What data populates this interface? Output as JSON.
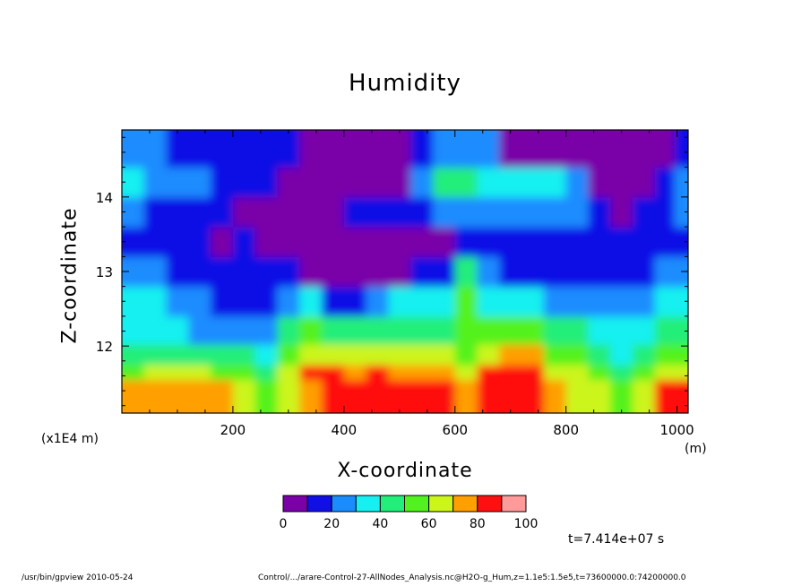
{
  "chart_data": {
    "type": "heatmap",
    "title": "Humidity",
    "xlabel": "X-coordinate",
    "xunit": "(m)",
    "ylabel": "Z-coordinate",
    "yscale_label": "(x1E4 m)",
    "xlim": [
      0,
      1020
    ],
    "ylim": [
      11.1,
      14.9
    ],
    "xticks": [
      200,
      400,
      600,
      800,
      1000
    ],
    "yticks": [
      12,
      13,
      14
    ],
    "colorbar": {
      "levels": [
        0,
        10,
        20,
        30,
        40,
        50,
        60,
        70,
        80,
        90,
        100
      ],
      "tick_labels": [
        "0",
        "20",
        "40",
        "60",
        "80",
        "100"
      ],
      "colors": [
        "#7a00a8",
        "#1010e6",
        "#1a8cff",
        "#17f0f0",
        "#22ee7a",
        "#52f21e",
        "#ccf51a",
        "#ff9f00",
        "#ff1010",
        "#ff9a9a"
      ]
    },
    "levels_grid": {
      "x_centers": [
        20,
        60,
        100,
        140,
        180,
        220,
        260,
        300,
        340,
        380,
        420,
        460,
        500,
        540,
        580,
        620,
        660,
        700,
        740,
        780,
        820,
        860,
        900,
        940,
        980,
        1010
      ],
      "z_rows": [
        11.45,
        11.65,
        11.85,
        12.2,
        12.6,
        13.0,
        13.4,
        13.8,
        14.2,
        14.6
      ],
      "values": [
        [
          7,
          7,
          7,
          7,
          7,
          6,
          5,
          6,
          7,
          8,
          8,
          8,
          8,
          8,
          8,
          7,
          8,
          8,
          8,
          7,
          6,
          6,
          5,
          6,
          8,
          8
        ],
        [
          5,
          6,
          6,
          6,
          5,
          5,
          4,
          6,
          8,
          8,
          7,
          8,
          7,
          7,
          7,
          6,
          8,
          8,
          8,
          6,
          6,
          5,
          4,
          5,
          6,
          6
        ],
        [
          4,
          4,
          4,
          4,
          4,
          4,
          3,
          5,
          6,
          6,
          6,
          6,
          6,
          6,
          6,
          5,
          6,
          7,
          7,
          5,
          5,
          4,
          3,
          4,
          5,
          5
        ],
        [
          3,
          3,
          3,
          2,
          2,
          2,
          2,
          4,
          5,
          4,
          4,
          4,
          4,
          4,
          4,
          5,
          5,
          5,
          5,
          4,
          4,
          3,
          3,
          3,
          4,
          4
        ],
        [
          3,
          3,
          2,
          2,
          1,
          1,
          1,
          2,
          3,
          1,
          1,
          2,
          3,
          3,
          3,
          5,
          3,
          3,
          3,
          2,
          2,
          2,
          2,
          2,
          3,
          3
        ],
        [
          2,
          2,
          1,
          1,
          1,
          1,
          1,
          1,
          0,
          0,
          0,
          0,
          0,
          1,
          1,
          4,
          2,
          1,
          1,
          1,
          1,
          1,
          1,
          1,
          2,
          2
        ],
        [
          1,
          1,
          1,
          1,
          0,
          1,
          0,
          0,
          0,
          0,
          0,
          0,
          0,
          0,
          0,
          1,
          1,
          1,
          1,
          1,
          1,
          1,
          1,
          1,
          1,
          1
        ],
        [
          2,
          1,
          1,
          1,
          1,
          0,
          0,
          0,
          0,
          0,
          1,
          1,
          1,
          1,
          2,
          2,
          2,
          2,
          2,
          2,
          2,
          1,
          0,
          1,
          1,
          2
        ],
        [
          3,
          2,
          2,
          2,
          1,
          1,
          1,
          0,
          0,
          0,
          0,
          0,
          0,
          2,
          4,
          4,
          3,
          3,
          3,
          3,
          2,
          0,
          0,
          0,
          1,
          2
        ],
        [
          2,
          2,
          1,
          1,
          1,
          1,
          1,
          1,
          0,
          0,
          0,
          0,
          0,
          1,
          2,
          2,
          2,
          0,
          0,
          0,
          0,
          0,
          0,
          0,
          0,
          1
        ]
      ]
    },
    "time_label": "t=7.414e+07 s"
  },
  "footer": {
    "program": "/usr/bin/gpview   2010-05-24",
    "source": "Control/.../arare-Control-27-AllNodes_Analysis.nc@H2O-g_Hum,z=1.1e5:1.5e5,t=73600000.0:74200000.0"
  }
}
